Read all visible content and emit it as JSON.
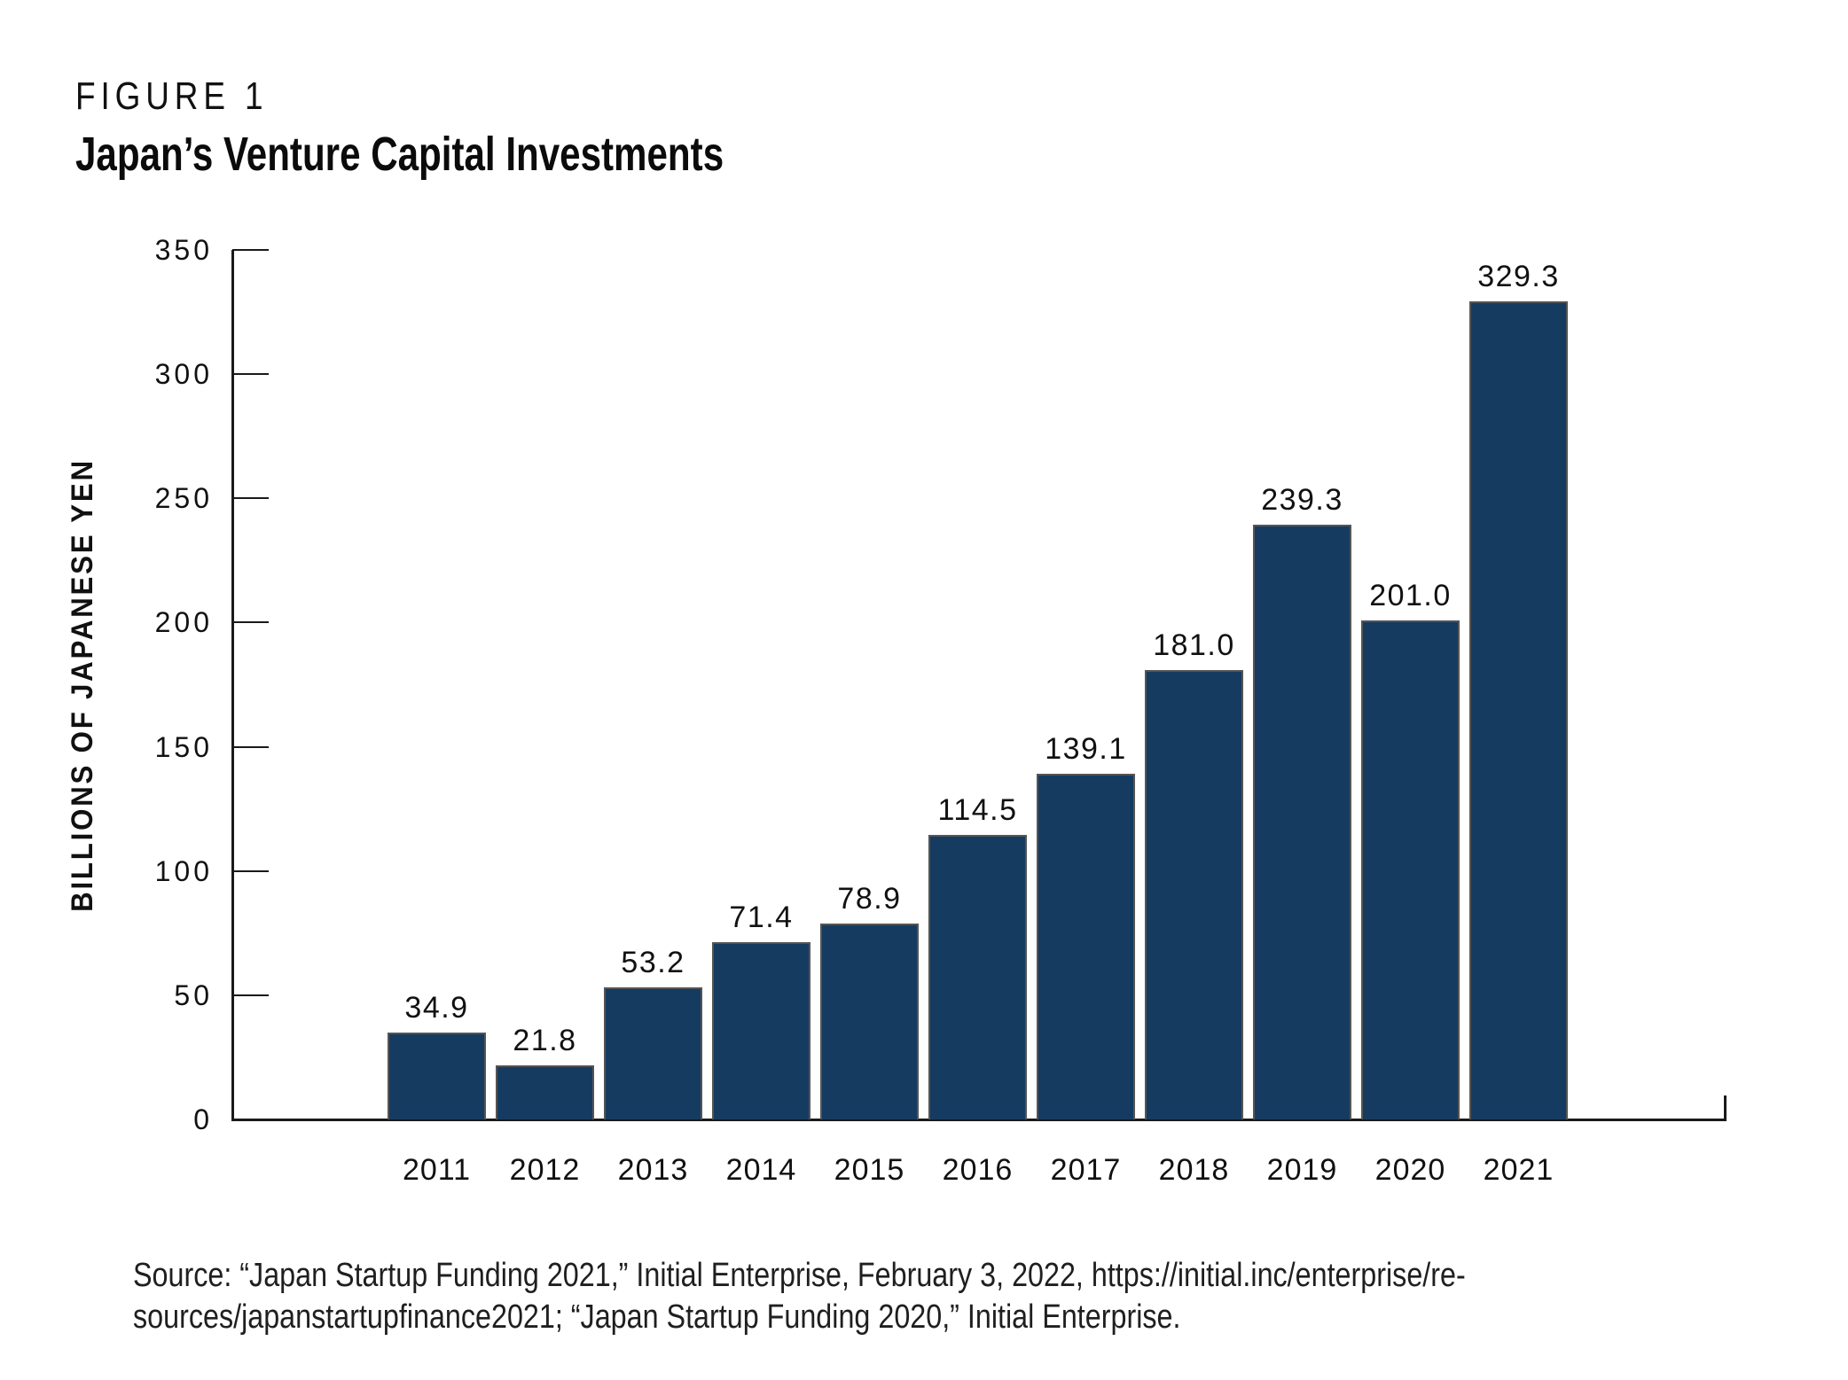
{
  "figure": {
    "label": "FIGURE 1",
    "title": "Japan’s Venture Capital Investments"
  },
  "chart_data": {
    "type": "bar",
    "title": "Japan’s Venture Capital Investments",
    "categories": [
      "2011",
      "2012",
      "2013",
      "2014",
      "2015",
      "2016",
      "2017",
      "2018",
      "2019",
      "2020",
      "2021"
    ],
    "values": [
      34.9,
      21.8,
      53.2,
      71.4,
      78.9,
      114.5,
      139.1,
      181.0,
      239.3,
      201.0,
      329.3
    ],
    "value_labels": [
      "34.9",
      "21.8",
      "53.2",
      "71.4",
      "78.9",
      "114.5",
      "139.1",
      "181.0",
      "239.3",
      "201.0",
      "329.3"
    ],
    "xlabel": "",
    "ylabel": "BILLIONS OF JAPANESE YEN",
    "ylim": [
      0,
      350
    ],
    "yticks": [
      350,
      300,
      250,
      200,
      150,
      100,
      50,
      0
    ],
    "grid": false,
    "legend_position": "none",
    "bar_color": "#163B60",
    "bar_border_color": "#555555",
    "axis_color": "#1a1a1a"
  },
  "source": {
    "line1": "Source: “Japan Startup Funding 2021,” Initial Enterprise, February 3, 2022, https://initial.inc/enterprise/re-",
    "line2": "sources/japanstartupfinance2021; “Japan Startup Funding 2020,” Initial Enterprise."
  }
}
